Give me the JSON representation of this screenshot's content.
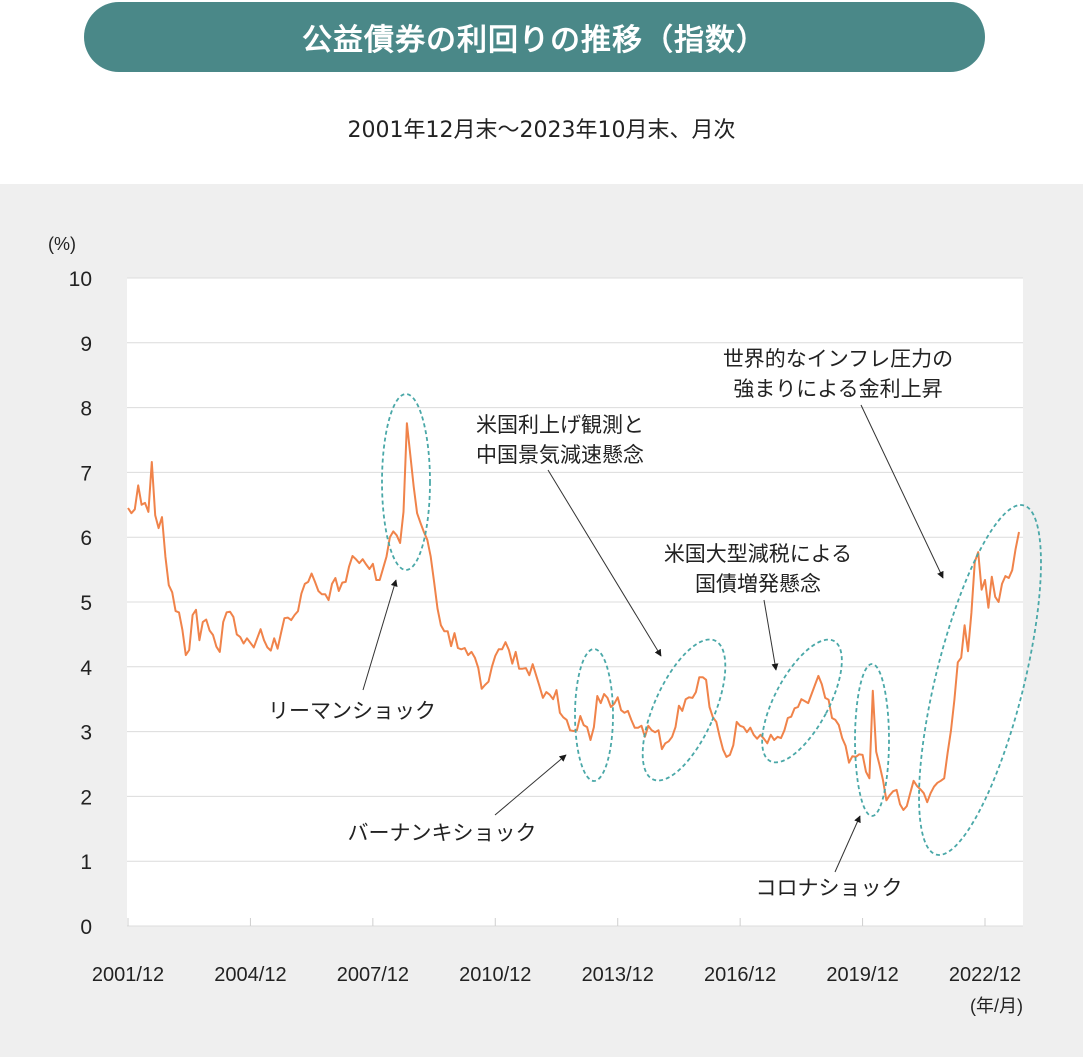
{
  "title": "公益債券の利回りの推移（指数）",
  "subtitle": "2001年12月末～2023年10月末、月次",
  "colors": {
    "title_bg": "#4a8888",
    "line": "#f0834a",
    "ellipse": "#4aa8a8",
    "panel_bg": "#efefef"
  },
  "chart_data": {
    "type": "line",
    "title": "公益債券の利回りの推移（指数）",
    "subtitle": "2001年12月末～2023年10月末、月次",
    "ylabel": "(%)",
    "xlabel": "(年/月)",
    "ylim": [
      0,
      10
    ],
    "yticks": [
      "0",
      "1",
      "2",
      "3",
      "4",
      "5",
      "6",
      "7",
      "8",
      "9",
      "10"
    ],
    "xticks": [
      "2001/12",
      "2004/12",
      "2007/12",
      "2010/12",
      "2013/12",
      "2016/12",
      "2019/12",
      "2022/12"
    ],
    "grid": true,
    "start": "2001/12",
    "end": "2023/10",
    "frequency": "monthly",
    "values": [
      6.45,
      6.37,
      6.43,
      6.8,
      6.5,
      6.53,
      6.39,
      7.16,
      6.34,
      6.14,
      6.31,
      5.7,
      5.26,
      5.15,
      4.86,
      4.84,
      4.57,
      4.18,
      4.26,
      4.8,
      4.88,
      4.41,
      4.69,
      4.73,
      4.56,
      4.49,
      4.31,
      4.23,
      4.69,
      4.84,
      4.85,
      4.77,
      4.5,
      4.46,
      4.36,
      4.44,
      4.37,
      4.3,
      4.44,
      4.58,
      4.41,
      4.3,
      4.25,
      4.44,
      4.28,
      4.52,
      4.75,
      4.76,
      4.72,
      4.8,
      4.86,
      5.13,
      5.28,
      5.31,
      5.44,
      5.31,
      5.17,
      5.12,
      5.12,
      5.03,
      5.28,
      5.37,
      5.17,
      5.3,
      5.31,
      5.55,
      5.71,
      5.66,
      5.6,
      5.66,
      5.58,
      5.51,
      5.59,
      5.34,
      5.34,
      5.52,
      5.7,
      6.0,
      6.09,
      6.03,
      5.91,
      6.39,
      7.76,
      7.27,
      6.78,
      6.37,
      6.22,
      6.08,
      5.96,
      5.7,
      5.31,
      4.9,
      4.64,
      4.55,
      4.55,
      4.32,
      4.52,
      4.29,
      4.27,
      4.29,
      4.18,
      4.23,
      4.14,
      3.98,
      3.66,
      3.72,
      3.77,
      4.0,
      4.17,
      4.27,
      4.27,
      4.38,
      4.26,
      4.05,
      4.23,
      3.97,
      3.97,
      3.98,
      3.87,
      4.04,
      3.87,
      3.7,
      3.52,
      3.61,
      3.57,
      3.5,
      3.64,
      3.29,
      3.22,
      3.18,
      3.02,
      3.01,
      3.02,
      3.24,
      3.1,
      3.07,
      2.87,
      3.07,
      3.55,
      3.44,
      3.58,
      3.52,
      3.38,
      3.43,
      3.53,
      3.33,
      3.29,
      3.32,
      3.18,
      3.06,
      3.06,
      3.09,
      2.92,
      3.09,
      3.02,
      2.99,
      3.02,
      2.73,
      2.82,
      2.85,
      2.92,
      3.07,
      3.4,
      3.32,
      3.5,
      3.53,
      3.52,
      3.61,
      3.84,
      3.84,
      3.8,
      3.38,
      3.22,
      3.15,
      2.92,
      2.72,
      2.61,
      2.64,
      2.79,
      3.15,
      3.09,
      3.07,
      2.99,
      3.06,
      2.95,
      2.89,
      2.95,
      2.89,
      2.82,
      2.95,
      2.87,
      2.92,
      2.9,
      3.02,
      3.21,
      3.23,
      3.36,
      3.38,
      3.5,
      3.47,
      3.44,
      3.58,
      3.72,
      3.86,
      3.73,
      3.52,
      3.49,
      3.21,
      3.18,
      3.1,
      2.9,
      2.78,
      2.52,
      2.62,
      2.61,
      2.65,
      2.64,
      2.38,
      2.28,
      3.63,
      2.69,
      2.48,
      2.25,
      1.94,
      2.02,
      2.08,
      2.1,
      1.88,
      1.79,
      1.85,
      2.05,
      2.24,
      2.16,
      2.11,
      2.05,
      1.91,
      2.05,
      2.15,
      2.21,
      2.24,
      2.28,
      2.67,
      3.02,
      3.49,
      4.07,
      4.14,
      4.64,
      4.24,
      4.83,
      5.62,
      5.77,
      5.19,
      5.34,
      4.91,
      5.39,
      5.08,
      5.0,
      5.28,
      5.4,
      5.37,
      5.49,
      5.82,
      6.08
    ],
    "annotations": [
      {
        "lines": [
          "リーマンショック"
        ]
      },
      {
        "lines": [
          "バーナンキショック"
        ]
      },
      {
        "lines": [
          "米国利上げ観測と",
          "中国景気減速懸念"
        ]
      },
      {
        "lines": [
          "米国大型減税による",
          "国債増発懸念"
        ]
      },
      {
        "lines": [
          "コロナショック"
        ]
      },
      {
        "lines": [
          "世界的なインフレ圧力の",
          "強まりによる金利上昇"
        ]
      }
    ]
  }
}
